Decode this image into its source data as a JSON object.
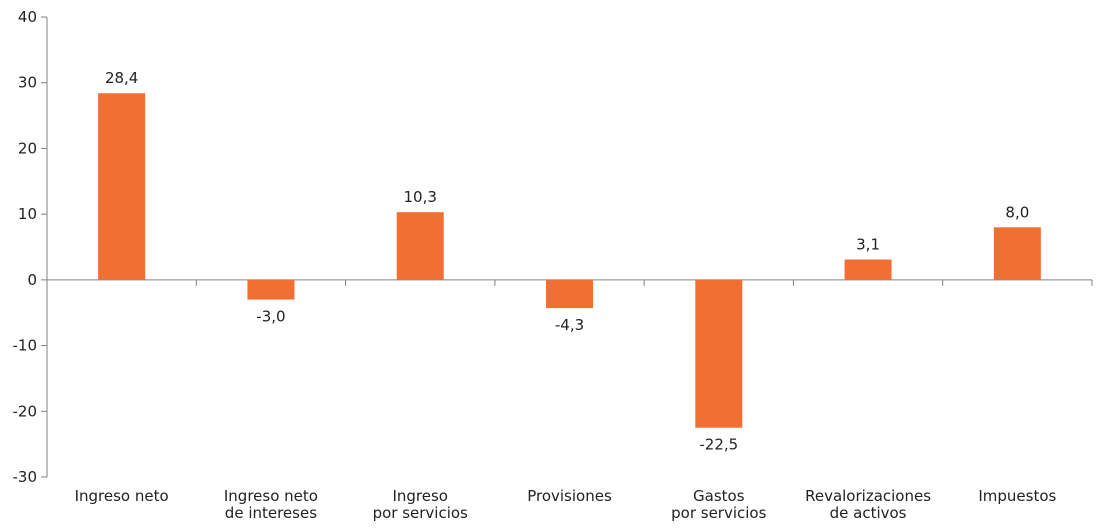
{
  "chart_data": {
    "type": "bar",
    "categories": [
      [
        "Ingreso neto"
      ],
      [
        "Ingreso neto",
        "de intereses"
      ],
      [
        "Ingreso",
        "por servicios"
      ],
      [
        "Provisiones"
      ],
      [
        "Gastos",
        "por servicios"
      ],
      [
        "Revalorizaciones",
        "de activos"
      ],
      [
        "Impuestos"
      ]
    ],
    "values": [
      28.4,
      -3.0,
      10.3,
      -4.3,
      -22.5,
      3.1,
      8.0
    ],
    "data_labels": [
      "28,4",
      "-3,0",
      "10,3",
      "-4,3",
      "-22,5",
      "3,1",
      "8,0"
    ],
    "y_ticks": [
      "40",
      "30",
      "20",
      "10",
      "0",
      "-10",
      "-20",
      "-30"
    ],
    "ylim": [
      -30,
      40
    ],
    "bar_color": "#F26F33",
    "axis_color": "#808080",
    "grid": false,
    "legend": "none"
  }
}
